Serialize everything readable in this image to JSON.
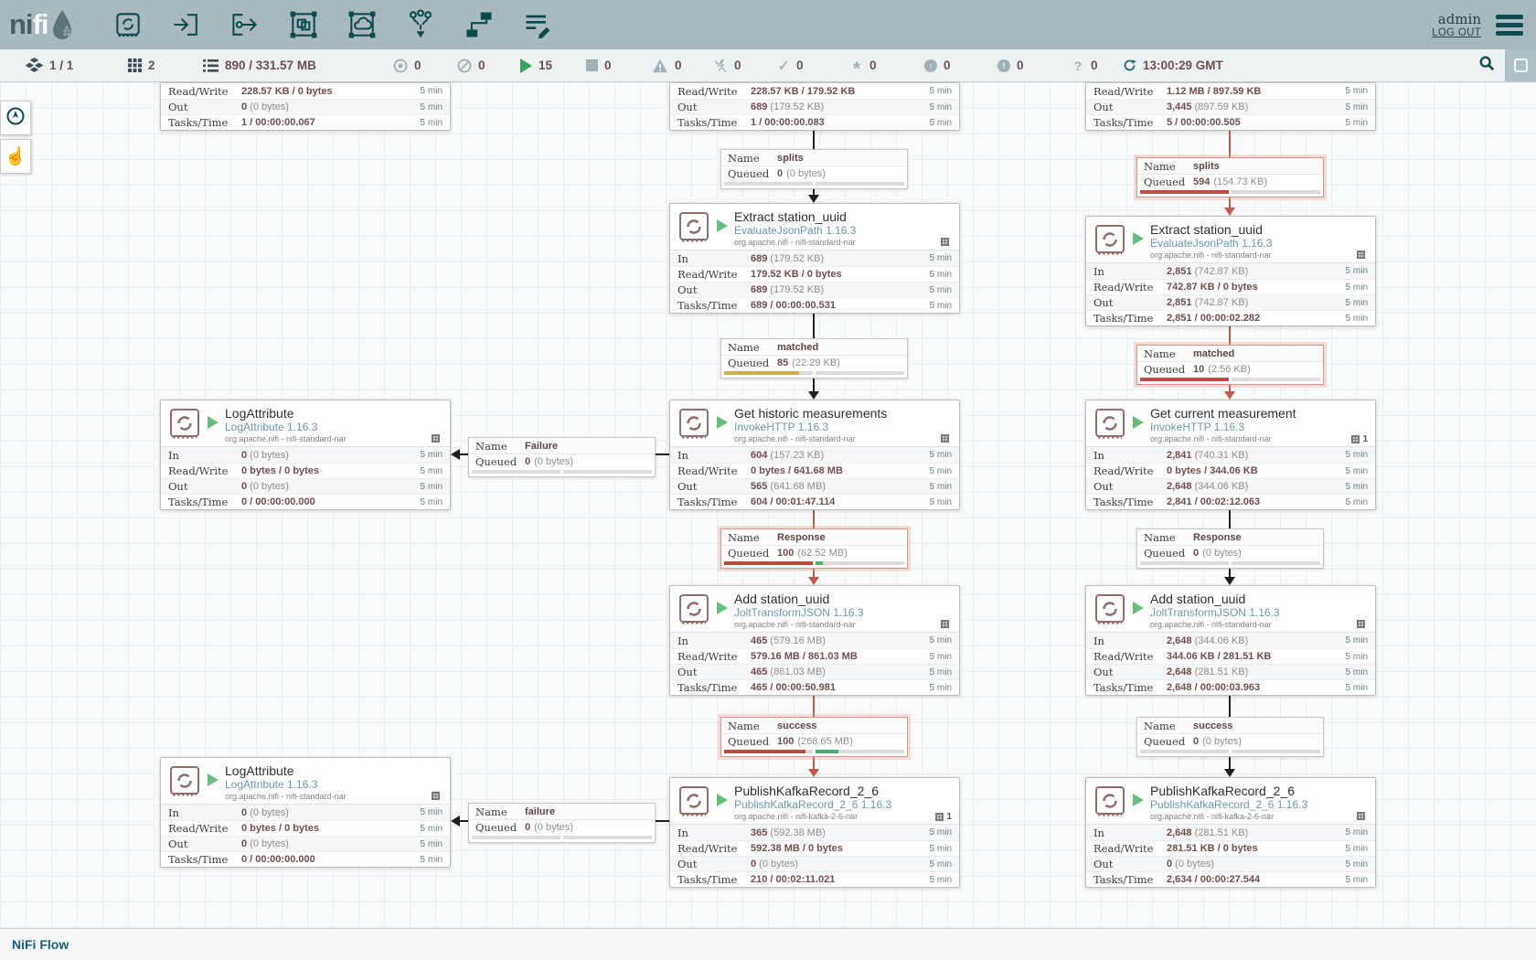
{
  "header": {
    "logo": {
      "ni": "ni",
      "fi": "fi"
    },
    "toolbar": [
      {
        "icon": "processor-icon"
      },
      {
        "icon": "input-port-icon"
      },
      {
        "icon": "output-port-icon"
      },
      {
        "icon": "process-group-icon"
      },
      {
        "icon": "remote-process-group-icon"
      },
      {
        "icon": "funnel-icon"
      },
      {
        "icon": "template-icon"
      },
      {
        "icon": "label-icon"
      }
    ],
    "user": "admin",
    "logout": "LOG OUT"
  },
  "status_bar": {
    "items": [
      {
        "icon": "cluster-icon",
        "value": "1 / 1"
      },
      {
        "icon": "threads-icon",
        "value": "2"
      },
      {
        "icon": "queued-icon",
        "value": "890 / 331.57 MB"
      },
      {
        "icon": "transmitting-icon",
        "value": "0"
      },
      {
        "icon": "not-transmitting-icon",
        "value": "0"
      },
      {
        "icon": "running-icon",
        "value": "15"
      },
      {
        "icon": "stopped-icon",
        "value": "0"
      },
      {
        "icon": "invalid-icon",
        "value": "0"
      },
      {
        "icon": "disabled-icon",
        "value": "0"
      },
      {
        "icon": "up-to-date-icon",
        "value": "0"
      },
      {
        "icon": "locally-modified-icon",
        "value": "0"
      },
      {
        "icon": "stale-icon",
        "value": "0"
      },
      {
        "icon": "locally-modified-stale-icon",
        "value": "0"
      },
      {
        "icon": "sync-failure-icon",
        "value": "0"
      }
    ],
    "time": "13:00:29 GMT"
  },
  "strings": {
    "name": "Name",
    "queued": "Queued"
  },
  "canvas": {
    "partials": [
      {
        "id": "partial-left",
        "rows": [
          {
            "label": "Read/Write",
            "bold": "228.57 KB / 0 bytes",
            "rest": "",
            "window": "5 min"
          },
          {
            "label": "Out",
            "bold": "0",
            "rest": " (0 bytes)",
            "window": "5 min"
          },
          {
            "label": "Tasks/Time",
            "bold": "1 / 00:00:00.067",
            "rest": "",
            "window": "5 min"
          }
        ]
      },
      {
        "id": "partial-mid",
        "rows": [
          {
            "label": "Read/Write",
            "bold": "228.57 KB / 179.52 KB",
            "rest": "",
            "window": "5 min"
          },
          {
            "label": "Out",
            "bold": "689",
            "rest": " (179.52 KB)",
            "window": "5 min"
          },
          {
            "label": "Tasks/Time",
            "bold": "1 / 00:00:00.083",
            "rest": "",
            "window": "5 min"
          }
        ]
      },
      {
        "id": "partial-right",
        "rows": [
          {
            "label": "Read/Write",
            "bold": "1.12 MB / 897.59 KB",
            "rest": "",
            "window": "5 min"
          },
          {
            "label": "Out",
            "bold": "3,445",
            "rest": " (897.59 KB)",
            "window": "5 min"
          },
          {
            "label": "Tasks/Time",
            "bold": "5 / 00:00:00.505",
            "rest": "",
            "window": "5 min"
          }
        ]
      }
    ],
    "processors": [
      {
        "id": "extract-mid",
        "title": "Extract station_uuid",
        "type": "EvaluateJsonPath 1.16.3",
        "bundle": "org.apache.nifi - nifi-standard-nar",
        "badge": "",
        "rows": [
          {
            "label": "In",
            "bold": "689",
            "rest": " (179.52 KB)",
            "window": "5 min"
          },
          {
            "label": "Read/Write",
            "bold": "179.52 KB / 0 bytes",
            "rest": "",
            "window": "5 min"
          },
          {
            "label": "Out",
            "bold": "689",
            "rest": " (179.52 KB)",
            "window": "5 min"
          },
          {
            "label": "Tasks/Time",
            "bold": "689 / 00:00:00.531",
            "rest": "",
            "window": "5 min"
          }
        ]
      },
      {
        "id": "extract-right",
        "title": "Extract station_uuid",
        "type": "EvaluateJsonPath 1.16.3",
        "bundle": "org.apache.nifi - nifi-standard-nar",
        "badge": "",
        "rows": [
          {
            "label": "In",
            "bold": "2,851",
            "rest": " (742.87 KB)",
            "window": "5 min"
          },
          {
            "label": "Read/Write",
            "bold": "742.87 KB / 0 bytes",
            "rest": "",
            "window": "5 min"
          },
          {
            "label": "Out",
            "bold": "2,851",
            "rest": " (742.87 KB)",
            "window": "5 min"
          },
          {
            "label": "Tasks/Time",
            "bold": "2,851 / 00:00:02.282",
            "rest": "",
            "window": "5 min"
          }
        ]
      },
      {
        "id": "log-top",
        "title": "LogAttribute",
        "type": "LogAttribute 1.16.3",
        "bundle": "org.apache.nifi - nifi-standard-nar",
        "badge": "",
        "rows": [
          {
            "label": "In",
            "bold": "0",
            "rest": " (0 bytes)",
            "window": "5 min"
          },
          {
            "label": "Read/Write",
            "bold": "0 bytes / 0 bytes",
            "rest": "",
            "window": "5 min"
          },
          {
            "label": "Out",
            "bold": "0",
            "rest": " (0 bytes)",
            "window": "5 min"
          },
          {
            "label": "Tasks/Time",
            "bold": "0 / 00:00:00.000",
            "rest": "",
            "window": "5 min"
          }
        ]
      },
      {
        "id": "get-historic",
        "title": "Get historic measurements",
        "type": "InvokeHTTP 1.16.3",
        "bundle": "org.apache.nifi - nifi-standard-nar",
        "badge": "",
        "rows": [
          {
            "label": "In",
            "bold": "604",
            "rest": " (157.23 KB)",
            "window": "5 min"
          },
          {
            "label": "Read/Write",
            "bold": "0 bytes / 641.68 MB",
            "rest": "",
            "window": "5 min"
          },
          {
            "label": "Out",
            "bold": "565",
            "rest": " (641.68 MB)",
            "window": "5 min"
          },
          {
            "label": "Tasks/Time",
            "bold": "604 / 00:01:47.114",
            "rest": "",
            "window": "5 min"
          }
        ]
      },
      {
        "id": "get-current",
        "title": "Get current measurement",
        "type": "InvokeHTTP 1.16.3",
        "bundle": "org.apache.nifi - nifi-standard-nar",
        "badge": "1",
        "rows": [
          {
            "label": "In",
            "bold": "2,841",
            "rest": " (740.31 KB)",
            "window": "5 min"
          },
          {
            "label": "Read/Write",
            "bold": "0 bytes / 344.06 KB",
            "rest": "",
            "window": "5 min"
          },
          {
            "label": "Out",
            "bold": "2,648",
            "rest": " (344.06 KB)",
            "window": "5 min"
          },
          {
            "label": "Tasks/Time",
            "bold": "2,841 / 00:02:12.063",
            "rest": "",
            "window": "5 min"
          }
        ]
      },
      {
        "id": "add-mid",
        "title": "Add station_uuid",
        "type": "JoltTransformJSON 1.16.3",
        "bundle": "org.apache.nifi - nifi-standard-nar",
        "badge": "",
        "rows": [
          {
            "label": "In",
            "bold": "465",
            "rest": " (579.16 MB)",
            "window": "5 min"
          },
          {
            "label": "Read/Write",
            "bold": "579.16 MB / 861.03 MB",
            "rest": "",
            "window": "5 min"
          },
          {
            "label": "Out",
            "bold": "465",
            "rest": " (861.03 MB)",
            "window": "5 min"
          },
          {
            "label": "Tasks/Time",
            "bold": "465 / 00:00:50.981",
            "rest": "",
            "window": "5 min"
          }
        ]
      },
      {
        "id": "add-right",
        "title": "Add station_uuid",
        "type": "JoltTransformJSON 1.16.3",
        "bundle": "org.apache.nifi - nifi-standard-nar",
        "badge": "",
        "rows": [
          {
            "label": "In",
            "bold": "2,648",
            "rest": " (344.06 KB)",
            "window": "5 min"
          },
          {
            "label": "Read/Write",
            "bold": "344.06 KB / 281.51 KB",
            "rest": "",
            "window": "5 min"
          },
          {
            "label": "Out",
            "bold": "2,648",
            "rest": " (281.51 KB)",
            "window": "5 min"
          },
          {
            "label": "Tasks/Time",
            "bold": "2,648 / 00:00:03.963",
            "rest": "",
            "window": "5 min"
          }
        ]
      },
      {
        "id": "log-bottom",
        "title": "LogAttribute",
        "type": "LogAttribute 1.16.3",
        "bundle": "org.apache.nifi - nifi-standard-nar",
        "badge": "",
        "rows": [
          {
            "label": "In",
            "bold": "0",
            "rest": " (0 bytes)",
            "window": "5 min"
          },
          {
            "label": "Read/Write",
            "bold": "0 bytes / 0 bytes",
            "rest": "",
            "window": "5 min"
          },
          {
            "label": "Out",
            "bold": "0",
            "rest": " (0 bytes)",
            "window": "5 min"
          },
          {
            "label": "Tasks/Time",
            "bold": "0 / 00:00:00.000",
            "rest": "",
            "window": "5 min"
          }
        ]
      },
      {
        "id": "publish-mid",
        "title": "PublishKafkaRecord_2_6",
        "type": "PublishKafkaRecord_2_6 1.16.3",
        "bundle": "org.apache.nifi - nifi-kafka-2-6-nar",
        "badge": "1",
        "rows": [
          {
            "label": "In",
            "bold": "365",
            "rest": " (592.38 MB)",
            "window": "5 min"
          },
          {
            "label": "Read/Write",
            "bold": "592.38 MB / 0 bytes",
            "rest": "",
            "window": "5 min"
          },
          {
            "label": "Out",
            "bold": "0",
            "rest": " (0 bytes)",
            "window": "5 min"
          },
          {
            "label": "Tasks/Time",
            "bold": "210 / 00:02:11.021",
            "rest": "",
            "window": "5 min"
          }
        ]
      },
      {
        "id": "publish-right",
        "title": "PublishKafkaRecord_2_6",
        "type": "PublishKafkaRecord_2_6 1.16.3",
        "bundle": "org.apache.nifi - nifi-kafka-2-6-nar",
        "badge": "",
        "rows": [
          {
            "label": "In",
            "bold": "2,648",
            "rest": " (281.51 KB)",
            "window": "5 min"
          },
          {
            "label": "Read/Write",
            "bold": "281.51 KB / 0 bytes",
            "rest": "",
            "window": "5 min"
          },
          {
            "label": "Out",
            "bold": "0",
            "rest": " (0 bytes)",
            "window": "5 min"
          },
          {
            "label": "Tasks/Time",
            "bold": "2,634 / 00:00:27.544",
            "rest": "",
            "window": "5 min"
          }
        ]
      }
    ],
    "labels": [
      {
        "id": "splits-mid",
        "name": "splits",
        "count": "0",
        "size": "(0 bytes)",
        "alert": false,
        "left_pct": 0,
        "left_color": "",
        "right_pct": 0,
        "right_color": ""
      },
      {
        "id": "splits-right",
        "name": "splits",
        "count": "594",
        "size": "(154.73 KB)",
        "alert": true,
        "left_pct": 100,
        "left_color": "red",
        "right_pct": 0,
        "right_color": ""
      },
      {
        "id": "matched-mid",
        "name": "matched",
        "count": "85",
        "size": "(22.29 KB)",
        "alert": false,
        "left_pct": 85,
        "left_color": "yellow",
        "right_pct": 0,
        "right_color": ""
      },
      {
        "id": "matched-right",
        "name": "matched",
        "count": "10",
        "size": "(2.56 KB)",
        "alert": true,
        "left_pct": 100,
        "left_color": "red",
        "right_pct": 0,
        "right_color": ""
      },
      {
        "id": "failure-top",
        "name": "Failure",
        "count": "0",
        "size": "(0 bytes)",
        "alert": false,
        "left_pct": 0,
        "left_color": "",
        "right_pct": 0,
        "right_color": ""
      },
      {
        "id": "response-mid",
        "name": "Response",
        "count": "100",
        "size": "(62.52 MB)",
        "alert": true,
        "left_pct": 100,
        "left_color": "red",
        "right_pct": 8,
        "right_color": "green"
      },
      {
        "id": "response-right",
        "name": "Response",
        "count": "0",
        "size": "(0 bytes)",
        "alert": false,
        "left_pct": 0,
        "left_color": "",
        "right_pct": 0,
        "right_color": ""
      },
      {
        "id": "success-mid",
        "name": "success",
        "count": "100",
        "size": "(268.65 MB)",
        "alert": true,
        "left_pct": 92,
        "left_color": "red",
        "right_pct": 26,
        "right_color": "green"
      },
      {
        "id": "success-right",
        "name": "success",
        "count": "0",
        "size": "(0 bytes)",
        "alert": false,
        "left_pct": 0,
        "left_color": "",
        "right_pct": 0,
        "right_color": ""
      },
      {
        "id": "failure-bottom",
        "name": "failure",
        "count": "0",
        "size": "(0 bytes)",
        "alert": false,
        "left_pct": 0,
        "left_color": "",
        "right_pct": 0,
        "right_color": ""
      }
    ]
  },
  "footer": {
    "breadcrumb": "NiFi Flow"
  },
  "colors": {
    "accent": "#0b4b4e",
    "alert_border": "#dd9384",
    "line_red": "#c05a4c",
    "line_black": "#1f1f1f",
    "running_green": "#69bd7f",
    "bar_red": "#b94d44",
    "bar_yellow": "#cfae4e",
    "bar_green": "#4caf70"
  }
}
